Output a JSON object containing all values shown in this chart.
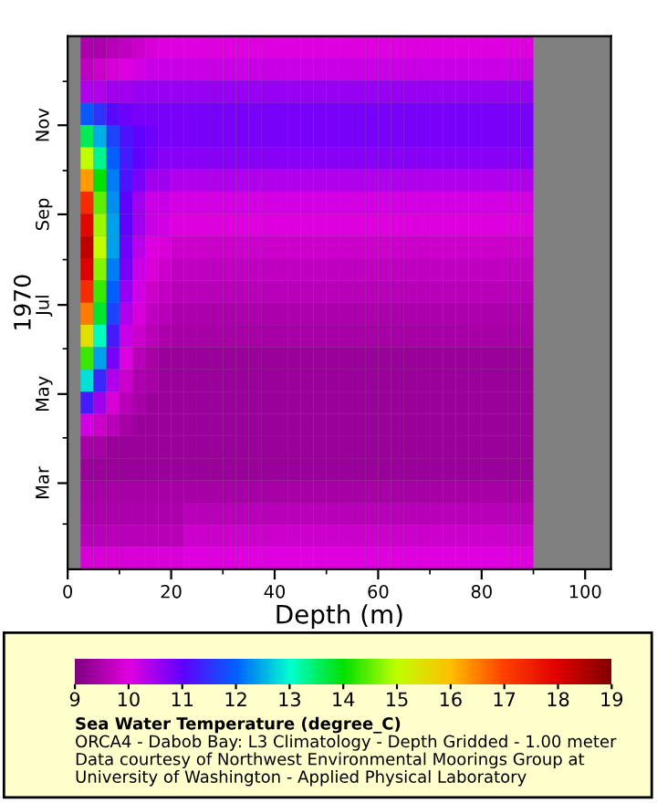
{
  "chart_data": {
    "type": "heatmap",
    "xlabel": "Depth (m)",
    "ylabel": "1970",
    "clabel": "Sea Water Temperature (degree_C)",
    "annotations": [
      "ORCA4 - Dabob Bay: L3 Climatology - Depth Gridded - 1.00 meter",
      "Data courtesy of Northwest Environmental Moorings Group at",
      "University of Washington - Applied Physical Laboratory"
    ],
    "xlim": [
      0,
      105
    ],
    "xticks": [
      0,
      {
        "value": 10,
        "label": null
      },
      20,
      {
        "value": 30,
        "label": null
      },
      40,
      {
        "value": 50,
        "label": null
      },
      60,
      {
        "value": 70,
        "label": null
      },
      80,
      {
        "value": 90,
        "label": null
      },
      100
    ],
    "ylim": [
      "1970-01-01",
      "1971-01-01"
    ],
    "yticks": [
      {
        "value": "1970-02-01",
        "label": null
      },
      {
        "value": "1970-03-01",
        "label": "Mar"
      },
      {
        "value": "1970-04-01",
        "label": null
      },
      {
        "value": "1970-05-01",
        "label": "May"
      },
      {
        "value": "1970-06-01",
        "label": null
      },
      {
        "value": "1970-07-01",
        "label": "Jul"
      },
      {
        "value": "1970-08-01",
        "label": null
      },
      {
        "value": "1970-09-01",
        "label": "Sep"
      },
      {
        "value": "1970-10-01",
        "label": null
      },
      {
        "value": "1970-11-01",
        "label": "Nov"
      },
      {
        "value": "1970-12-01",
        "label": null
      }
    ],
    "clim": [
      9,
      19
    ],
    "cticks": [
      9,
      10,
      11,
      12,
      13,
      14,
      15,
      16,
      17,
      18,
      19
    ],
    "cells": [
      [
        null,
        9.5,
        9.5,
        9.6,
        9.7,
        9.8,
        9.9,
        10.0,
        10.0,
        10.0,
        10.0,
        10.0,
        10.0,
        10.0,
        10.0,
        10.0,
        10.0,
        10.0,
        10.0,
        10.0,
        10.0,
        10.0,
        10.0,
        10.0,
        10.0,
        10.0,
        10.0,
        10.0,
        10.0,
        10.0,
        10.0,
        10.0,
        10.0,
        10.0,
        10.0,
        10.0,
        null,
        null,
        null,
        null,
        null,
        null
      ],
      [
        null,
        9.7,
        9.8,
        9.9,
        10.0,
        10.1,
        10.2,
        10.2,
        10.2,
        10.2,
        10.2,
        10.2,
        10.2,
        10.2,
        10.2,
        10.2,
        10.2,
        10.2,
        10.2,
        10.2,
        10.2,
        10.2,
        10.2,
        10.2,
        10.2,
        10.2,
        10.2,
        10.2,
        10.2,
        10.2,
        10.2,
        10.2,
        10.2,
        10.2,
        10.2,
        10.2,
        null,
        null,
        null,
        null,
        null,
        null
      ],
      [
        null,
        10.4,
        10.4,
        10.5,
        10.5,
        10.6,
        10.6,
        10.6,
        10.6,
        10.6,
        10.6,
        10.6,
        10.6,
        10.6,
        10.6,
        10.6,
        10.6,
        10.6,
        10.6,
        10.6,
        10.6,
        10.6,
        10.6,
        10.6,
        10.6,
        10.6,
        10.6,
        10.6,
        10.6,
        10.6,
        10.6,
        10.6,
        10.6,
        10.6,
        10.6,
        10.6,
        null,
        null,
        null,
        null,
        null,
        null
      ],
      [
        null,
        11.9,
        11.5,
        11.1,
        10.9,
        10.8,
        10.8,
        10.8,
        10.8,
        10.8,
        10.8,
        10.8,
        10.8,
        10.8,
        10.8,
        10.8,
        10.8,
        10.8,
        10.8,
        10.8,
        10.8,
        10.8,
        10.8,
        10.8,
        10.8,
        10.8,
        10.8,
        10.8,
        10.8,
        10.8,
        10.8,
        10.8,
        10.8,
        10.8,
        10.8,
        10.8,
        null,
        null,
        null,
        null,
        null,
        null
      ],
      [
        null,
        13.6,
        12.5,
        11.7,
        11.2,
        11.0,
        10.9,
        10.8,
        10.8,
        10.8,
        10.8,
        10.8,
        10.8,
        10.8,
        10.8,
        10.8,
        10.8,
        10.8,
        10.8,
        10.8,
        10.8,
        10.8,
        10.8,
        10.8,
        10.8,
        10.8,
        10.8,
        10.8,
        10.8,
        10.8,
        10.8,
        10.8,
        10.8,
        10.8,
        10.8,
        10.8,
        null,
        null,
        null,
        null,
        null,
        null
      ],
      [
        null,
        15.0,
        13.3,
        12.0,
        11.3,
        11.0,
        10.8,
        10.7,
        10.7,
        10.7,
        10.7,
        10.7,
        10.7,
        10.7,
        10.7,
        10.7,
        10.7,
        10.7,
        10.7,
        10.7,
        10.7,
        10.7,
        10.7,
        10.7,
        10.7,
        10.7,
        10.7,
        10.7,
        10.7,
        10.7,
        10.7,
        10.7,
        10.7,
        10.7,
        10.7,
        10.7,
        null,
        null,
        null,
        null,
        null,
        null
      ],
      [
        null,
        16.3,
        14.0,
        12.2,
        11.2,
        10.8,
        10.5,
        10.5,
        10.4,
        10.4,
        10.4,
        10.4,
        10.4,
        10.4,
        10.4,
        10.4,
        10.4,
        10.4,
        10.4,
        10.4,
        10.4,
        10.4,
        10.4,
        10.4,
        10.4,
        10.4,
        10.4,
        10.4,
        10.4,
        10.4,
        10.4,
        10.4,
        10.4,
        10.4,
        10.4,
        10.4,
        null,
        null,
        null,
        null,
        null,
        null
      ],
      [
        null,
        17.3,
        14.5,
        12.3,
        11.0,
        10.5,
        10.2,
        10.2,
        10.1,
        10.1,
        10.1,
        10.1,
        10.1,
        10.1,
        10.1,
        10.1,
        10.1,
        10.1,
        10.1,
        10.1,
        10.1,
        10.1,
        10.1,
        10.1,
        10.1,
        10.1,
        10.1,
        10.1,
        10.1,
        10.1,
        10.1,
        10.1,
        10.1,
        10.1,
        10.1,
        10.1,
        null,
        null,
        null,
        null,
        null,
        null
      ],
      [
        null,
        17.9,
        14.8,
        12.4,
        11.0,
        10.5,
        10.2,
        10.1,
        10.0,
        10.0,
        10.0,
        10.0,
        10.0,
        10.0,
        10.0,
        10.0,
        10.0,
        10.0,
        10.0,
        10.0,
        10.0,
        10.0,
        10.0,
        10.0,
        10.0,
        10.0,
        10.0,
        10.0,
        10.0,
        10.0,
        10.0,
        10.0,
        10.0,
        10.0,
        10.0,
        10.0,
        null,
        null,
        null,
        null,
        null,
        null
      ],
      [
        null,
        18.3,
        15.0,
        12.4,
        10.9,
        10.3,
        10.0,
        9.9,
        9.8,
        9.8,
        9.8,
        9.8,
        9.8,
        9.8,
        9.8,
        9.8,
        9.8,
        9.8,
        9.8,
        9.8,
        9.8,
        9.8,
        9.8,
        9.8,
        9.8,
        9.8,
        9.8,
        9.8,
        9.8,
        9.8,
        9.8,
        9.8,
        9.8,
        9.8,
        9.8,
        9.8,
        null,
        null,
        null,
        null,
        null,
        null
      ],
      [
        null,
        18.0,
        14.7,
        12.2,
        10.8,
        10.2,
        9.9,
        9.8,
        9.7,
        9.7,
        9.7,
        9.7,
        9.7,
        9.7,
        9.7,
        9.7,
        9.7,
        9.7,
        9.7,
        9.7,
        9.7,
        9.7,
        9.7,
        9.7,
        9.7,
        9.7,
        9.7,
        9.7,
        9.7,
        9.7,
        9.7,
        9.7,
        9.7,
        9.7,
        9.7,
        9.7,
        null,
        null,
        null,
        null,
        null,
        null
      ],
      [
        null,
        17.3,
        14.3,
        12.0,
        10.6,
        10.1,
        9.8,
        9.7,
        9.6,
        9.6,
        9.6,
        9.6,
        9.6,
        9.6,
        9.6,
        9.6,
        9.6,
        9.6,
        9.6,
        9.6,
        9.6,
        9.6,
        9.6,
        9.6,
        9.6,
        9.6,
        9.6,
        9.6,
        9.6,
        9.6,
        9.6,
        9.6,
        9.6,
        9.6,
        9.6,
        9.6,
        null,
        null,
        null,
        null,
        null,
        null
      ],
      [
        null,
        16.5,
        13.8,
        11.7,
        10.4,
        9.9,
        9.7,
        9.6,
        9.5,
        9.5,
        9.5,
        9.5,
        9.5,
        9.5,
        9.5,
        9.5,
        9.5,
        9.5,
        9.5,
        9.5,
        9.5,
        9.5,
        9.5,
        9.5,
        9.5,
        9.5,
        9.5,
        9.5,
        9.5,
        9.5,
        9.5,
        9.5,
        9.5,
        9.5,
        9.5,
        9.5,
        null,
        null,
        null,
        null,
        null,
        null
      ],
      [
        null,
        15.5,
        13.1,
        11.3,
        10.2,
        9.8,
        9.6,
        9.5,
        9.4,
        9.4,
        9.4,
        9.4,
        9.4,
        9.4,
        9.4,
        9.4,
        9.4,
        9.4,
        9.4,
        9.4,
        9.4,
        9.4,
        9.4,
        9.4,
        9.4,
        9.4,
        9.4,
        9.4,
        9.4,
        9.4,
        9.4,
        9.4,
        9.4,
        9.4,
        9.4,
        9.4,
        null,
        null,
        null,
        null,
        null,
        null
      ],
      [
        null,
        14.3,
        12.4,
        10.8,
        10.0,
        9.6,
        9.4,
        9.3,
        9.3,
        9.3,
        9.3,
        9.3,
        9.3,
        9.3,
        9.3,
        9.3,
        9.3,
        9.3,
        9.3,
        9.3,
        9.3,
        9.3,
        9.3,
        9.3,
        9.3,
        9.3,
        9.3,
        9.3,
        9.3,
        9.3,
        9.3,
        9.3,
        9.3,
        9.3,
        9.3,
        9.3,
        null,
        null,
        null,
        null,
        null,
        null
      ],
      [
        null,
        12.8,
        11.4,
        10.4,
        9.8,
        9.5,
        9.4,
        9.3,
        9.3,
        9.3,
        9.3,
        9.3,
        9.3,
        9.3,
        9.3,
        9.3,
        9.3,
        9.3,
        9.3,
        9.3,
        9.3,
        9.3,
        9.3,
        9.3,
        9.3,
        9.3,
        9.3,
        9.3,
        9.3,
        9.3,
        9.3,
        9.3,
        9.3,
        9.3,
        9.3,
        9.3,
        null,
        null,
        null,
        null,
        null,
        null
      ],
      [
        null,
        11.3,
        10.5,
        9.9,
        9.6,
        9.4,
        9.3,
        9.3,
        9.3,
        9.3,
        9.3,
        9.3,
        9.3,
        9.3,
        9.3,
        9.3,
        9.3,
        9.3,
        9.3,
        9.3,
        9.3,
        9.3,
        9.3,
        9.3,
        9.3,
        9.3,
        9.3,
        9.3,
        9.3,
        9.3,
        9.3,
        9.3,
        9.3,
        9.3,
        9.3,
        9.3,
        null,
        null,
        null,
        null,
        null,
        null
      ],
      [
        null,
        10.1,
        9.8,
        9.6,
        9.4,
        9.3,
        9.3,
        9.3,
        9.3,
        9.3,
        9.3,
        9.3,
        9.3,
        9.3,
        9.3,
        9.3,
        9.3,
        9.3,
        9.3,
        9.3,
        9.3,
        9.3,
        9.3,
        9.3,
        9.3,
        9.3,
        9.3,
        9.3,
        9.3,
        9.3,
        9.3,
        9.3,
        9.3,
        9.3,
        9.3,
        9.3,
        null,
        null,
        null,
        null,
        null,
        null
      ],
      [
        null,
        9.4,
        9.4,
        9.3,
        9.3,
        9.3,
        9.3,
        9.3,
        9.3,
        9.3,
        9.3,
        9.3,
        9.3,
        9.3,
        9.3,
        9.3,
        9.3,
        9.3,
        9.3,
        9.3,
        9.3,
        9.3,
        9.3,
        9.3,
        9.3,
        9.3,
        9.3,
        9.3,
        9.3,
        9.3,
        9.3,
        9.3,
        9.3,
        9.3,
        9.3,
        9.3,
        null,
        null,
        null,
        null,
        null,
        null
      ],
      [
        null,
        9.3,
        9.3,
        9.3,
        9.3,
        9.3,
        9.3,
        9.3,
        9.3,
        9.3,
        9.3,
        9.3,
        9.3,
        9.3,
        9.3,
        9.3,
        9.3,
        9.3,
        9.3,
        9.3,
        9.3,
        9.3,
        9.3,
        9.3,
        9.3,
        9.3,
        9.3,
        9.3,
        9.3,
        9.3,
        9.3,
        9.3,
        9.3,
        9.3,
        9.3,
        9.3,
        null,
        null,
        null,
        null,
        null,
        null
      ],
      [
        null,
        9.4,
        9.4,
        9.4,
        9.4,
        9.4,
        9.4,
        9.4,
        9.4,
        9.4,
        9.4,
        9.4,
        9.4,
        9.4,
        9.4,
        9.4,
        9.4,
        9.4,
        9.4,
        9.4,
        9.4,
        9.4,
        9.4,
        9.4,
        9.4,
        9.4,
        9.4,
        9.4,
        9.4,
        9.4,
        9.4,
        9.4,
        9.4,
        9.4,
        9.4,
        9.4,
        null,
        null,
        null,
        null,
        null,
        null
      ],
      [
        null,
        9.5,
        9.5,
        9.5,
        9.5,
        9.5,
        9.5,
        9.5,
        9.5,
        9.6,
        9.6,
        9.6,
        9.6,
        9.6,
        9.6,
        9.6,
        9.6,
        9.6,
        9.6,
        9.6,
        9.6,
        9.6,
        9.6,
        9.6,
        9.6,
        9.6,
        9.6,
        9.6,
        9.6,
        9.6,
        9.6,
        9.6,
        9.6,
        9.6,
        9.6,
        9.6,
        null,
        null,
        null,
        null,
        null,
        null
      ],
      [
        null,
        9.6,
        9.6,
        9.6,
        9.6,
        9.6,
        9.6,
        9.6,
        9.6,
        9.8,
        9.8,
        9.8,
        9.8,
        9.8,
        9.8,
        9.8,
        9.8,
        9.8,
        9.8,
        9.8,
        9.8,
        9.8,
        9.8,
        9.8,
        9.8,
        9.8,
        9.8,
        9.8,
        9.8,
        9.8,
        9.8,
        9.8,
        9.8,
        9.8,
        9.8,
        9.8,
        null,
        null,
        null,
        null,
        null,
        null
      ],
      [
        null,
        9.9,
        9.9,
        9.9,
        9.9,
        9.9,
        9.9,
        9.9,
        9.9,
        10.0,
        10.0,
        10.0,
        10.0,
        10.0,
        10.0,
        10.0,
        10.0,
        10.0,
        10.0,
        10.0,
        10.0,
        10.0,
        10.0,
        10.0,
        10.0,
        10.0,
        10.0,
        10.0,
        10.0,
        10.0,
        10.0,
        10.0,
        10.0,
        10.0,
        10.0,
        10.0,
        null,
        null,
        null,
        null,
        null,
        null
      ]
    ]
  }
}
